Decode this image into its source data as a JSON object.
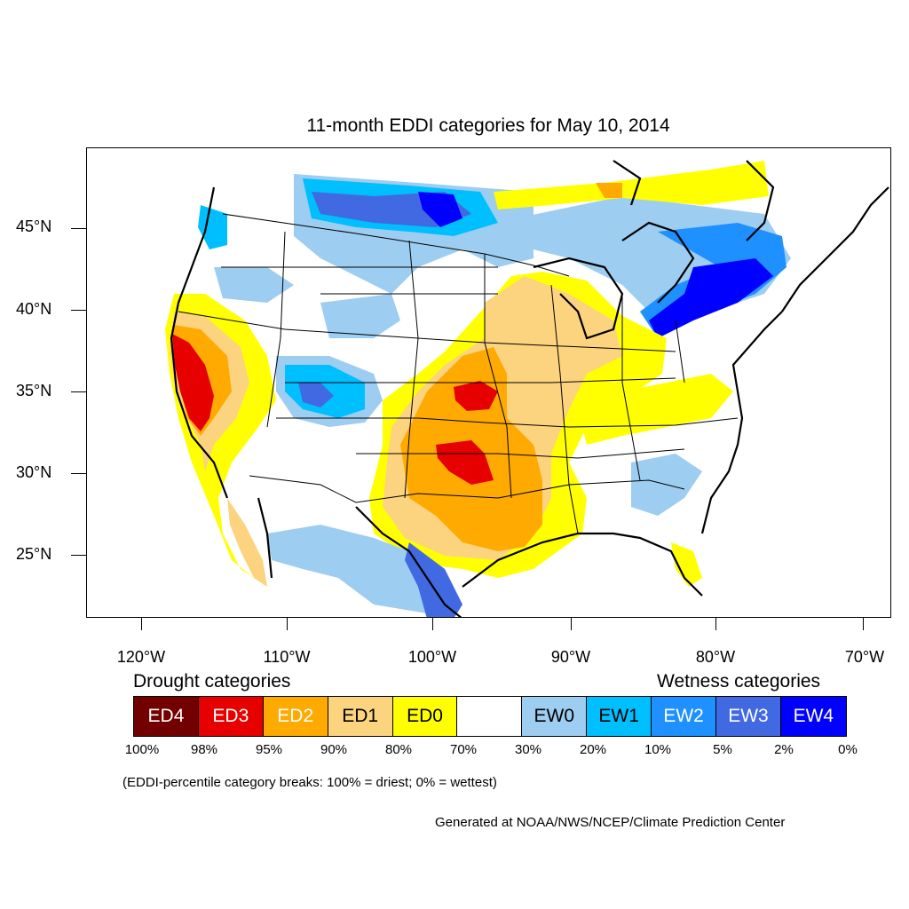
{
  "title": "11-month EDDI categories for May 10, 2014",
  "y_axis": {
    "labels": [
      "45°N",
      "40°N",
      "35°N",
      "30°N",
      "25°N"
    ]
  },
  "x_axis": {
    "labels": [
      "120°W",
      "110°W",
      "100°W",
      "90°W",
      "80°W",
      "70°W"
    ]
  },
  "legend": {
    "drought_title": "Drought categories",
    "wetness_title": "Wetness categories",
    "categories": [
      {
        "label": "ED4",
        "color": "#730000",
        "text_color": "#ffffff"
      },
      {
        "label": "ED3",
        "color": "#e60000",
        "text_color": "#ffffff"
      },
      {
        "label": "ED2",
        "color": "#ffaa00",
        "text_color": "#ffffff"
      },
      {
        "label": "ED1",
        "color": "#fcd37f",
        "text_color": "#000000"
      },
      {
        "label": "ED0",
        "color": "#ffff00",
        "text_color": "#000000"
      },
      {
        "label": "",
        "color": "#ffffff",
        "text_color": "#000000"
      },
      {
        "label": "EW0",
        "color": "#9dcdf0",
        "text_color": "#000000"
      },
      {
        "label": "EW1",
        "color": "#00bfff",
        "text_color": "#000000"
      },
      {
        "label": "EW2",
        "color": "#1e90ff",
        "text_color": "#ffffff"
      },
      {
        "label": "EW3",
        "color": "#4169e1",
        "text_color": "#ffffff"
      },
      {
        "label": "EW4",
        "color": "#0000ff",
        "text_color": "#ffffff"
      }
    ],
    "percentiles": [
      "100%",
      "98%",
      "95%",
      "90%",
      "80%",
      "70%",
      "30%",
      "20%",
      "10%",
      "5%",
      "2%",
      "0%"
    ]
  },
  "note": "(EDDI-percentile category breaks: 100% = driest; 0% = wettest)",
  "credit": "Generated at NOAA/NWS/NCEP/Climate Prediction Center"
}
